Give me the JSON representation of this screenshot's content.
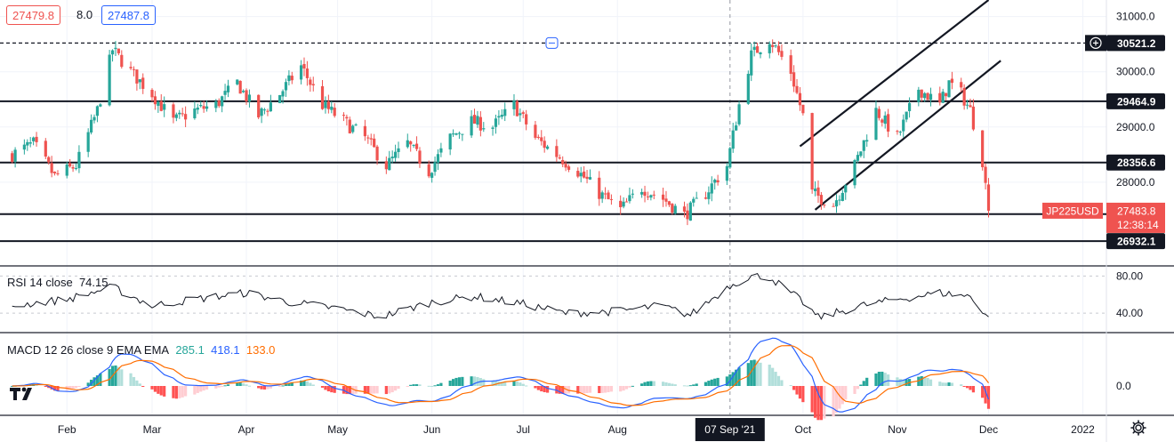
{
  "header": {
    "bid": "27479.8",
    "spread": "8.0",
    "ask": "27487.8"
  },
  "colors": {
    "up": "#26a69a",
    "down": "#ef5350",
    "rsi": "#131722",
    "macd": "#2962ff",
    "signal": "#ff6d00",
    "hist_up_strong": "#26a69a",
    "hist_up_weak": "#b2dfdb",
    "hist_down_strong": "#ff5252",
    "hist_down_weak": "#ffcdd2",
    "label_dark": "#131722",
    "label_red": "#ef5350"
  },
  "chart_data": {
    "type": "candlestick",
    "symbol": "JP225USD",
    "last_price": "27483.8",
    "countdown": "12:38:14",
    "y_ticks": [
      "31000.0",
      "30000.0",
      "29000.0",
      "28000.0"
    ],
    "ylim": [
      26500,
      31300
    ],
    "x_ticks": [
      "Feb",
      "Mar",
      "Apr",
      "May",
      "Jun",
      "Jul",
      "Aug",
      "Oct",
      "Nov",
      "Dec",
      "2022"
    ],
    "crosshair_date": "07 Sep '21",
    "horizontal_levels": [
      {
        "value": 30521.2,
        "label": "30521.2",
        "style": "dashed"
      },
      {
        "value": 29464.9,
        "label": "29464.9",
        "style": "solid"
      },
      {
        "value": 28356.6,
        "label": "28356.6",
        "style": "solid"
      },
      {
        "value": 27422.9,
        "label": "27422.9",
        "style": "solid"
      },
      {
        "value": 26932.1,
        "label": "26932.1",
        "style": "solid"
      }
    ],
    "trend_channel": {
      "upper": [
        [
          "2021-09-30",
          28650
        ],
        [
          "2021-12-01",
          31300
        ]
      ],
      "lower": [
        [
          "2021-10-05",
          27500
        ],
        [
          "2021-12-05",
          30200
        ]
      ]
    },
    "price_series": [
      [
        "2021-01-14",
        28500
      ],
      [
        "2021-01-21",
        28700
      ],
      [
        "2021-01-28",
        28100
      ],
      [
        "2021-02-04",
        28300
      ],
      [
        "2021-02-11",
        29300
      ],
      [
        "2021-02-16",
        30400
      ],
      [
        "2021-02-22",
        30000
      ],
      [
        "2021-03-01",
        29600
      ],
      [
        "2021-03-08",
        29100
      ],
      [
        "2021-03-15",
        29300
      ],
      [
        "2021-03-22",
        29400
      ],
      [
        "2021-03-29",
        29800
      ],
      [
        "2021-04-05",
        29200
      ],
      [
        "2021-04-12",
        29600
      ],
      [
        "2021-04-19",
        30100
      ],
      [
        "2021-04-26",
        29400
      ],
      [
        "2021-05-03",
        29100
      ],
      [
        "2021-05-10",
        28800
      ],
      [
        "2021-05-17",
        28300
      ],
      [
        "2021-05-24",
        28700
      ],
      [
        "2021-05-31",
        28200
      ],
      [
        "2021-06-07",
        28800
      ],
      [
        "2021-06-14",
        29100
      ],
      [
        "2021-06-21",
        29000
      ],
      [
        "2021-06-28",
        29400
      ],
      [
        "2021-07-05",
        28800
      ],
      [
        "2021-07-12",
        28500
      ],
      [
        "2021-07-19",
        28200
      ],
      [
        "2021-07-26",
        27800
      ],
      [
        "2021-08-02",
        27500
      ],
      [
        "2021-08-09",
        27900
      ],
      [
        "2021-08-16",
        27700
      ],
      [
        "2021-08-23",
        27400
      ],
      [
        "2021-08-30",
        27800
      ],
      [
        "2021-09-06",
        28300
      ],
      [
        "2021-09-10",
        29400
      ],
      [
        "2021-09-14",
        30300
      ],
      [
        "2021-09-20",
        30600
      ],
      [
        "2021-09-27",
        30000
      ],
      [
        "2021-10-01",
        29200
      ],
      [
        "2021-10-04",
        27800
      ],
      [
        "2021-10-11",
        27600
      ],
      [
        "2021-10-18",
        28300
      ],
      [
        "2021-10-25",
        29300
      ],
      [
        "2021-11-01",
        28800
      ],
      [
        "2021-11-08",
        29700
      ],
      [
        "2021-11-15",
        29400
      ],
      [
        "2021-11-18",
        29800
      ],
      [
        "2021-11-22",
        29600
      ],
      [
        "2021-11-25",
        29300
      ],
      [
        "2021-11-29",
        28400
      ],
      [
        "2021-12-01",
        27483.8
      ]
    ]
  },
  "rsi": {
    "label": "RSI 14 close",
    "value": "74.15",
    "ticks": [
      "80.00",
      "40.00"
    ],
    "series": [
      [
        "2021-01-14",
        48
      ],
      [
        "2021-02-01",
        55
      ],
      [
        "2021-02-16",
        68
      ],
      [
        "2021-03-01",
        48
      ],
      [
        "2021-03-15",
        55
      ],
      [
        "2021-04-01",
        62
      ],
      [
        "2021-04-15",
        52
      ],
      [
        "2021-05-01",
        45
      ],
      [
        "2021-05-15",
        36
      ],
      [
        "2021-06-01",
        52
      ],
      [
        "2021-06-15",
        58
      ],
      [
        "2021-07-01",
        50
      ],
      [
        "2021-07-15",
        40
      ],
      [
        "2021-08-01",
        42
      ],
      [
        "2021-08-15",
        48
      ],
      [
        "2021-08-25",
        38
      ],
      [
        "2021-09-07",
        70
      ],
      [
        "2021-09-14",
        80
      ],
      [
        "2021-09-20",
        79
      ],
      [
        "2021-10-01",
        52
      ],
      [
        "2021-10-06",
        35
      ],
      [
        "2021-10-20",
        48
      ],
      [
        "2021-11-01",
        55
      ],
      [
        "2021-11-15",
        62
      ],
      [
        "2021-11-25",
        58
      ],
      [
        "2021-12-01",
        36
      ]
    ]
  },
  "macd": {
    "label": "MACD 12 26 close 9 EMA EMA",
    "histogram_value": "285.1",
    "macd_value": "418.1",
    "signal_value": "133.0",
    "ticks": [
      "0.0"
    ]
  },
  "icons": {
    "logo": "tradingview-logo-icon",
    "settings": "gear-icon",
    "crosshair": "crosshair-plus-icon",
    "collapse": "collapse-icon"
  }
}
